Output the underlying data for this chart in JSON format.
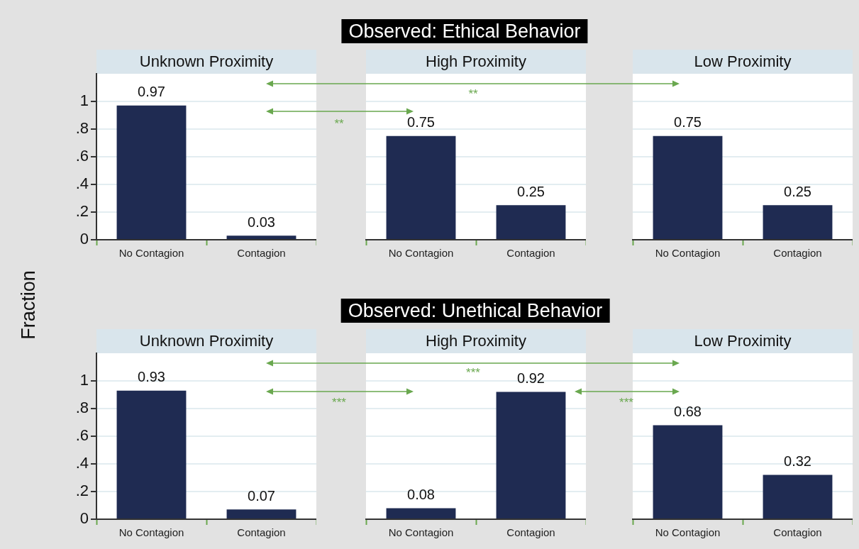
{
  "chart_data": [
    {
      "type": "bar",
      "title": "Unknown Proximity",
      "ylabel": "Fraction",
      "categories": [
        "No Contagion",
        "Contagion"
      ],
      "values": [
        0.97,
        0.03
      ],
      "color": "#1f2b52",
      "ylim": [
        0,
        1.2
      ],
      "yticks": [
        0,
        {
          "value": 0.2,
          "label": ".2"
        },
        {
          "value": 0.4,
          "label": ".4"
        },
        {
          "value": 0.6,
          "label": ".6"
        },
        {
          "value": 0.8,
          "label": ".8"
        },
        1
      ],
      "grid": "y",
      "legend": false,
      "data_labels": true
    },
    {
      "type": "bar",
      "title": "High Proximity",
      "categories": [
        "No Contagion",
        "Contagion"
      ],
      "values": [
        0.75,
        0.25
      ],
      "color": "#1f2b52",
      "ylim": [
        0,
        1.2
      ],
      "yticks": [
        0,
        0.2,
        0.4,
        0.6,
        0.8,
        1
      ],
      "grid": "y",
      "legend": false,
      "data_labels": true,
      "tick_labels": "x",
      "annotations": [
        "Observed: Ethical Behavior",
        "**",
        "**"
      ]
    },
    {
      "type": "bar",
      "title": "Low Proximity",
      "categories": [
        "No Contagion",
        "Contagion"
      ],
      "values": [
        0.75,
        0.25
      ],
      "color": "#1f2b52",
      "ylim": [
        0,
        1.2
      ],
      "yticks": [
        0,
        0.2,
        0.4,
        0.6,
        0.8,
        1
      ],
      "grid": "y",
      "legend": false,
      "data_labels": true,
      "tick_labels": "x"
    },
    {
      "type": "bar",
      "title": "Unknown Proximity",
      "categories": [
        "No Contagion",
        "Contagion"
      ],
      "values": [
        0.93,
        0.07
      ],
      "color": "#1f2b52",
      "ylim": [
        0,
        1.2
      ],
      "yticks": [
        0,
        {
          "value": 0.2,
          "label": ".2"
        },
        {
          "value": 0.4,
          "label": ".4"
        },
        {
          "value": 0.6,
          "label": ".6"
        },
        {
          "value": 0.8,
          "label": ".8"
        },
        1
      ],
      "grid": "y",
      "legend": false,
      "data_labels": true
    },
    {
      "type": "bar",
      "title": "High Proximity",
      "categories": [
        "No Contagion",
        "Contagion"
      ],
      "values": [
        0.08,
        0.92
      ],
      "color": "#1f2b52",
      "ylim": [
        0,
        1.2
      ],
      "yticks": [
        0,
        0.2,
        0.4,
        0.6,
        0.8,
        1
      ],
      "grid": "y",
      "legend": false,
      "data_labels": true,
      "tick_labels": "x",
      "annotations": [
        "Observed: Unethical Behavior",
        "***",
        "***",
        "***"
      ]
    },
    {
      "type": "bar",
      "title": "Low Proximity",
      "categories": [
        "No Contagion",
        "Contagion"
      ],
      "values": [
        0.68,
        0.32
      ],
      "color": "#1f2b52",
      "ylim": [
        0,
        1.2
      ],
      "yticks": [
        0,
        0.2,
        0.4,
        0.6,
        0.8,
        1
      ],
      "grid": "y",
      "legend": false,
      "data_labels": true,
      "tick_labels": "x"
    }
  ]
}
